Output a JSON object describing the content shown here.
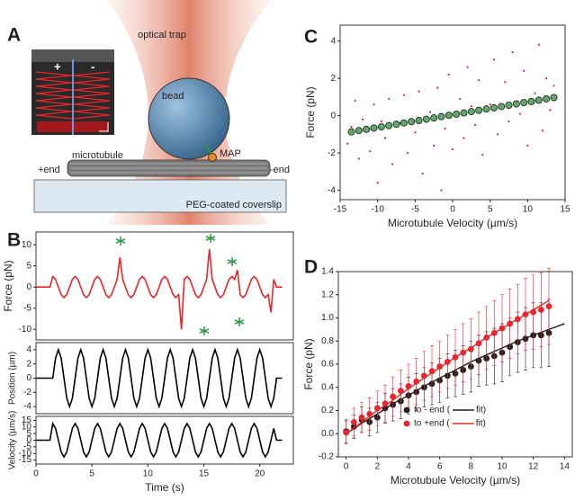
{
  "panel_labels": [
    "A",
    "B",
    "C",
    "D"
  ],
  "diagram": {
    "optical_trap": "optical trap",
    "bead": "bead",
    "map": "MAP",
    "microtubule": "microtubule",
    "plus_end": "+end",
    "minus_end": "-end",
    "coverslip": "PEG-coated coverslip",
    "inset_plus": "+",
    "inset_minus": "-"
  },
  "chart_data": [
    {
      "type": "line",
      "ylabel": "Force (pN)",
      "xlim": [
        0,
        23
      ],
      "ylim": [
        -12.5,
        13
      ],
      "yticks": [
        -10,
        -5,
        0,
        5,
        10
      ],
      "x": [
        0,
        0.25,
        0.5,
        0.75,
        1,
        1.25,
        1.5,
        1.75,
        2,
        2.25,
        2.5,
        2.75,
        3,
        3.25,
        3.5,
        3.75,
        4,
        4.25,
        4.5,
        4.75,
        5,
        5.25,
        5.5,
        5.75,
        6,
        6.25,
        6.5,
        6.75,
        7,
        7.25,
        7.5,
        7.75,
        8,
        8.25,
        8.5,
        8.75,
        9,
        9.25,
        9.5,
        9.75,
        10,
        10.25,
        10.5,
        10.75,
        11,
        11.25,
        11.5,
        11.75,
        12,
        12.25,
        12.5,
        12.75,
        13,
        13.25,
        13.5,
        13.75,
        14,
        14.25,
        14.5,
        14.75,
        15,
        15.25,
        15.5,
        15.75,
        16,
        16.25,
        16.5,
        16.75,
        17,
        17.25,
        17.5,
        17.75,
        18,
        18.25,
        18.5,
        18.75,
        19,
        19.25,
        19.5,
        19.75,
        20,
        20.25,
        20.5,
        20.75,
        21,
        21.25,
        21.5,
        21.75,
        22
      ],
      "series": [
        {
          "color": "#e8262b",
          "values": [
            0,
            0,
            0,
            0,
            0,
            0,
            2.5,
            1.8,
            0,
            -1.8,
            -2.5,
            -1.8,
            0,
            1.8,
            2.5,
            1.8,
            0,
            -1.8,
            -2.5,
            -1.8,
            0,
            1.8,
            2.5,
            1.8,
            0,
            -1.8,
            -2.5,
            -1.8,
            0,
            1.8,
            7,
            1.8,
            0,
            -1.8,
            -2.5,
            -1.8,
            0,
            1.8,
            2.5,
            1.8,
            0,
            -1.8,
            -2.5,
            -1.8,
            0,
            1.8,
            2.5,
            1.8,
            0,
            -1.8,
            -2.5,
            -1.8,
            -10,
            1.8,
            2.5,
            1.8,
            0,
            -1.8,
            -2.5,
            -1.8,
            0,
            1.8,
            9,
            1.8,
            0,
            -1.8,
            -2.5,
            -1.8,
            0,
            1.8,
            2.5,
            1.8,
            4,
            -1.8,
            -2.5,
            -1.8,
            0,
            1.8,
            2.5,
            1.8,
            0,
            -1.8,
            -2.5,
            -1.8,
            -6,
            1.8,
            0,
            0,
            0
          ]
        }
      ]
    },
    {
      "type": "line",
      "ylabel": "Position (µm)",
      "xlim": [
        0,
        23
      ],
      "ylim": [
        -5,
        5
      ],
      "yticks": [
        -4,
        -2,
        0,
        2,
        4
      ],
      "x": [
        0,
        0.25,
        0.5,
        0.75,
        1,
        1.25,
        1.5,
        1.75,
        2,
        2.25,
        2.5,
        2.75,
        3,
        3.25,
        3.5,
        3.75,
        4,
        4.25,
        4.5,
        4.75,
        5,
        5.25,
        5.5,
        5.75,
        6,
        6.25,
        6.5,
        6.75,
        7,
        7.25,
        7.5,
        7.75,
        8,
        8.25,
        8.5,
        8.75,
        9,
        9.25,
        9.5,
        9.75,
        10,
        10.25,
        10.5,
        10.75,
        11,
        11.25,
        11.5,
        11.75,
        12,
        12.25,
        12.5,
        12.75,
        13,
        13.25,
        13.5,
        13.75,
        14,
        14.25,
        14.5,
        14.75,
        15,
        15.25,
        15.5,
        15.75,
        16,
        16.25,
        16.5,
        16.75,
        17,
        17.25,
        17.5,
        17.75,
        18,
        18.25,
        18.5,
        18.75,
        19,
        19.25,
        19.5,
        19.75,
        20,
        20.25,
        20.5,
        20.75,
        21,
        21.25,
        21.5,
        21.75,
        22
      ],
      "series": [
        {
          "color": "#000000",
          "values": [
            0,
            0,
            0,
            0,
            0,
            0,
            0,
            2.83,
            4,
            2.83,
            0,
            -2.83,
            -4,
            -2.83,
            0,
            2.83,
            4,
            2.83,
            0,
            -2.83,
            -4,
            -2.83,
            0,
            2.83,
            4,
            2.83,
            0,
            -2.83,
            -4,
            -2.83,
            0,
            2.83,
            4,
            2.83,
            0,
            -2.83,
            -4,
            -2.83,
            0,
            2.83,
            4,
            2.83,
            0,
            -2.83,
            -4,
            -2.83,
            0,
            2.83,
            4,
            2.83,
            0,
            -2.83,
            -4,
            -2.83,
            0,
            2.83,
            4,
            2.83,
            0,
            -2.83,
            -4,
            -2.83,
            0,
            2.83,
            4,
            2.83,
            0,
            -2.83,
            -4,
            -2.83,
            0,
            2.83,
            4,
            2.83,
            0,
            -2.83,
            -4,
            -2.83,
            0,
            2.83,
            4,
            2.83,
            0,
            -2.83,
            -4,
            -2.83,
            0,
            0,
            0
          ]
        }
      ]
    },
    {
      "type": "line",
      "ylabel": "Velocity (µm/s)",
      "xlabel": "Time (s)",
      "xlim": [
        0,
        23
      ],
      "ylim": [
        -18,
        18
      ],
      "yticks": [
        -15,
        -10,
        -5,
        0,
        5,
        10,
        15
      ],
      "xticks": [
        0,
        5,
        10,
        15,
        20
      ],
      "x": [
        0,
        0.25,
        0.5,
        0.75,
        1,
        1.25,
        1.5,
        1.75,
        2,
        2.25,
        2.5,
        2.75,
        3,
        3.25,
        3.5,
        3.75,
        4,
        4.25,
        4.5,
        4.75,
        5,
        5.25,
        5.5,
        5.75,
        6,
        6.25,
        6.5,
        6.75,
        7,
        7.25,
        7.5,
        7.75,
        8,
        8.25,
        8.5,
        8.75,
        9,
        9.25,
        9.5,
        9.75,
        10,
        10.25,
        10.5,
        10.75,
        11,
        11.25,
        11.5,
        11.75,
        12,
        12.25,
        12.5,
        12.75,
        13,
        13.25,
        13.5,
        13.75,
        14,
        14.25,
        14.5,
        14.75,
        15,
        15.25,
        15.5,
        15.75,
        16,
        16.25,
        16.5,
        16.75,
        17,
        17.25,
        17.5,
        17.75,
        18,
        18.25,
        18.5,
        18.75,
        19,
        19.25,
        19.5,
        19.75,
        20,
        20.25,
        20.5,
        20.75,
        21,
        21.25,
        21.5,
        21.75,
        22
      ],
      "series": [
        {
          "color": "#000000",
          "values": [
            0,
            0,
            0,
            0,
            0,
            0,
            12.6,
            8.9,
            0,
            -8.9,
            -12.6,
            -8.9,
            0,
            8.9,
            12.6,
            8.9,
            0,
            -8.9,
            -12.6,
            -8.9,
            0,
            8.9,
            12.6,
            8.9,
            0,
            -8.9,
            -12.6,
            -8.9,
            0,
            8.9,
            12.6,
            8.9,
            0,
            -8.9,
            -12.6,
            -8.9,
            0,
            8.9,
            12.6,
            8.9,
            0,
            -8.9,
            -12.6,
            -8.9,
            0,
            8.9,
            12.6,
            8.9,
            0,
            -8.9,
            -12.6,
            -8.9,
            0,
            8.9,
            12.6,
            8.9,
            0,
            -8.9,
            -12.6,
            -8.9,
            0,
            8.9,
            12.6,
            8.9,
            0,
            -8.9,
            -12.6,
            -8.9,
            0,
            8.9,
            12.6,
            8.9,
            0,
            -8.9,
            -12.6,
            -8.9,
            0,
            8.9,
            12.6,
            8.9,
            0,
            -8.9,
            -12.6,
            -8.9,
            0,
            8.9,
            0,
            0,
            0
          ]
        }
      ]
    },
    {
      "type": "scatter",
      "ylabel": "Force (pN)",
      "xlabel": "Microtubule Velocity (µm/s)",
      "xlim": [
        -15,
        15
      ],
      "ylim": [
        -4.5,
        4.85
      ],
      "xticks": [
        -15,
        -10,
        -5,
        0,
        5,
        10,
        15
      ],
      "yticks": [
        -4,
        -2,
        0,
        2,
        4
      ],
      "series": [
        {
          "color": "#ee1c24",
          "x": [
            -14,
            -13,
            -12.5,
            -12,
            -11,
            -10.5,
            -10,
            -9,
            -8.5,
            -8,
            -7,
            -6.5,
            -6,
            -5,
            -4.5,
            -4,
            -3,
            -2.5,
            -2,
            -1,
            -0.5,
            0,
            1,
            1.5,
            2,
            3,
            3.5,
            4,
            5,
            5.5,
            6,
            7,
            7.5,
            8,
            9,
            9.5,
            10,
            11,
            11.5,
            12,
            12.5,
            13,
            13.5,
            -13.5,
            -9.5,
            -3.5,
            2.5,
            6.5,
            10.5,
            -1.5
          ],
          "values": [
            -1.5,
            0.8,
            -2.3,
            -0.2,
            -1.9,
            0.6,
            -3.6,
            -1.2,
            0.9,
            -2.6,
            -0.4,
            1.1,
            -2.0,
            -0.9,
            1.3,
            -3.1,
            0.2,
            -1.6,
            1.5,
            -0.7,
            2.2,
            -1.8,
            0.9,
            -1.2,
            2.6,
            -0.5,
            1.9,
            -2.1,
            0.6,
            3.0,
            -1.0,
            1.8,
            -0.3,
            3.4,
            0.1,
            2.4,
            -1.6,
            1.2,
            3.8,
            -0.8,
            2.0,
            0.3,
            1.6,
            -0.6,
            -0.3,
            -0.2,
            0.5,
            0.4,
            0.9,
            -4.0
          ]
        },
        {
          "color": "#5fa86a",
          "edgecolor": "#1a1a1a",
          "x": [
            -13.5,
            -12.5,
            -11.5,
            -10.5,
            -9.5,
            -8.5,
            -7.5,
            -6.5,
            -5.5,
            -4.5,
            -3.5,
            -2.5,
            -1.5,
            -0.5,
            0.5,
            1.5,
            2.5,
            3.5,
            4.5,
            5.5,
            6.5,
            7.5,
            8.5,
            9.5,
            10.5,
            11.5,
            12.5,
            13.5
          ],
          "values": [
            -0.87,
            -0.8,
            -0.73,
            -0.66,
            -0.6,
            -0.53,
            -0.46,
            -0.39,
            -0.32,
            -0.26,
            -0.19,
            -0.12,
            -0.05,
            0.02,
            0.08,
            0.15,
            0.22,
            0.29,
            0.36,
            0.42,
            0.49,
            0.56,
            0.63,
            0.7,
            0.76,
            0.83,
            0.9,
            0.97
          ]
        }
      ]
    },
    {
      "type": "scatter",
      "ylabel": "Force (pN)",
      "xlabel": "Microtubule Velocity (µm/s)",
      "xlim": [
        -0.5,
        14.5
      ],
      "ylim": [
        -0.2,
        1.4
      ],
      "xticks": [
        0,
        2,
        4,
        6,
        8,
        10,
        12,
        14
      ],
      "yticks": [
        -0.2,
        {
          "value": 0,
          "label": "0.0"
        },
        0.2,
        0.4,
        0.6,
        0.8,
        {
          "value": 1,
          "label": "1.0"
        },
        1.2,
        1.4
      ],
      "series": [
        {
          "name": "to - end (",
          "type": "scatter",
          "color": "#231f20",
          "x": [
            0,
            0.5,
            1,
            1.5,
            2,
            2.5,
            3,
            3.5,
            4,
            4.5,
            5,
            5.5,
            6,
            6.5,
            7,
            7.5,
            8,
            8.5,
            9,
            9.5,
            10,
            10.5,
            11,
            11.5,
            12,
            12.5,
            13
          ],
          "values": [
            0.02,
            0.06,
            0.12,
            0.1,
            0.14,
            0.22,
            0.25,
            0.28,
            0.33,
            0.36,
            0.4,
            0.43,
            0.46,
            0.5,
            0.52,
            0.55,
            0.58,
            0.63,
            0.65,
            0.67,
            0.7,
            0.75,
            0.79,
            0.82,
            0.85,
            0.85,
            0.87
          ],
          "errors": [
            0.1,
            0.1,
            0.11,
            0.12,
            0.13,
            0.13,
            0.14,
            0.15,
            0.16,
            0.16,
            0.17,
            0.18,
            0.19,
            0.19,
            0.2,
            0.21,
            0.22,
            0.22,
            0.23,
            0.24,
            0.25,
            0.25,
            0.26,
            0.27,
            0.28,
            0.28,
            0.29
          ]
        },
        {
          "name": "fit)",
          "type": "line",
          "color": "#231f20",
          "x": [
            0,
            1,
            2,
            3,
            4,
            5,
            6,
            7,
            8,
            9,
            10,
            11,
            12,
            13,
            14
          ],
          "values": [
            0,
            0.09,
            0.17,
            0.26,
            0.33,
            0.41,
            0.48,
            0.55,
            0.62,
            0.68,
            0.74,
            0.8,
            0.85,
            0.9,
            0.95
          ]
        },
        {
          "name": "to +end (",
          "type": "scatter",
          "color": "#e8262b",
          "x": [
            0,
            0.5,
            1,
            1.5,
            2,
            2.5,
            3,
            3.5,
            4,
            4.5,
            5,
            5.5,
            6,
            6.5,
            7,
            7.5,
            8,
            8.5,
            9,
            9.5,
            10,
            10.5,
            11,
            11.5,
            12,
            12.5,
            13
          ],
          "values": [
            0.01,
            0.1,
            0.14,
            0.17,
            0.22,
            0.26,
            0.32,
            0.37,
            0.41,
            0.45,
            0.5,
            0.54,
            0.58,
            0.62,
            0.66,
            0.7,
            0.73,
            0.78,
            0.83,
            0.87,
            0.91,
            0.95,
            0.99,
            1.03,
            1.05,
            1.07,
            1.1
          ],
          "errors": [
            0.1,
            0.12,
            0.13,
            0.14,
            0.15,
            0.16,
            0.17,
            0.18,
            0.19,
            0.2,
            0.21,
            0.22,
            0.22,
            0.23,
            0.24,
            0.25,
            0.26,
            0.27,
            0.27,
            0.28,
            0.29,
            0.3,
            0.3,
            0.31,
            0.32,
            0.32,
            0.33
          ]
        },
        {
          "name": "fit)",
          "type": "line",
          "color": "#e8262b",
          "x": [
            0,
            1,
            2,
            3,
            4,
            5,
            6,
            7,
            8,
            9,
            10,
            11,
            12,
            13
          ],
          "values": [
            0,
            0.1,
            0.2,
            0.29,
            0.39,
            0.48,
            0.57,
            0.66,
            0.74,
            0.83,
            0.91,
            0.99,
            1.07,
            1.15
          ]
        }
      ]
    }
  ]
}
